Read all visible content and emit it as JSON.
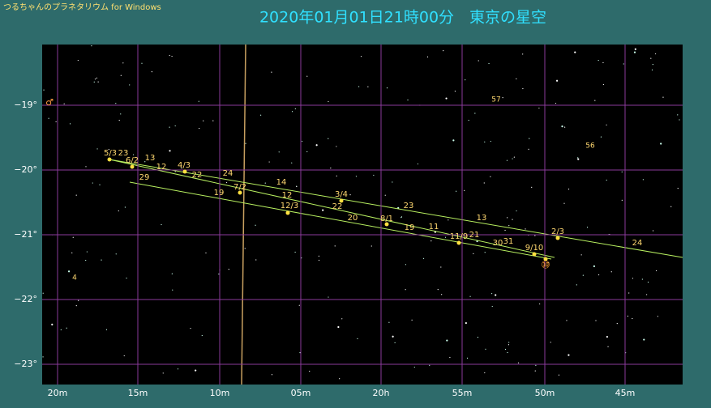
{
  "header": {
    "app_title": "つるちゃんのプラネタリウム for Windows",
    "title": "2020年01月01日21時00分　東京の星空"
  },
  "axis": {
    "y_labels": [
      "−19°",
      "−20°",
      "−21°",
      "−22°",
      "−23°"
    ],
    "x_labels": [
      "20m",
      "15m",
      "10m",
      "05m",
      "20h",
      "55m",
      "50m",
      "45m"
    ]
  },
  "labels": [
    "5/3",
    "23",
    "6/2",
    "13",
    "12",
    "4/3",
    "22",
    "29",
    "24",
    "7/2",
    "19",
    "14",
    "12",
    "3/4",
    "22",
    "12/3",
    "23",
    "20",
    "8/1",
    "19",
    "11",
    "13",
    "11/9",
    "21",
    "30",
    "31",
    "2/3",
    "9/10",
    "24"
  ],
  "star_labels": [
    "57",
    "56",
    "4"
  ],
  "planet_symbol": "♂",
  "moon_symbol": "⑩"
}
